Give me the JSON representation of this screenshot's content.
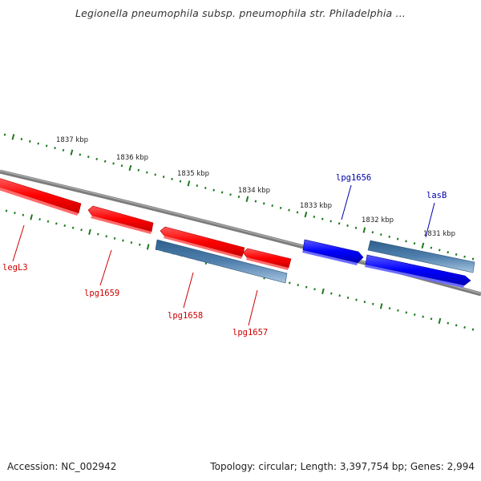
{
  "title": "Legionella pneumophila subsp. pneumophila str. Philadelphia ...",
  "accession": "Accession: NC_002942",
  "summary": "Topology: circular; Length: 3,397,754 bp; Genes: 2,994",
  "colors": {
    "backbone": "#808080",
    "tick": "#1e7a1e",
    "reverse_gene": "#ff0000",
    "forward_gene": "#0000ff",
    "cds": "#4f7fad",
    "reverse_label": "#cc0000",
    "forward_label": "#0000aa"
  },
  "scale_labels": [
    {
      "label": "1837 kbp"
    },
    {
      "label": "1836 kbp"
    },
    {
      "label": "1835 kbp"
    },
    {
      "label": "1834 kbp"
    },
    {
      "label": "1833 kbp"
    },
    {
      "label": "1832 kbp"
    },
    {
      "label": "1831 kbp"
    }
  ],
  "genes": [
    {
      "name": "legL3",
      "strand": "reverse"
    },
    {
      "name": "lpg1659",
      "strand": "reverse"
    },
    {
      "name": "lpg1658",
      "strand": "reverse"
    },
    {
      "name": "lpg1657",
      "strand": "reverse"
    },
    {
      "name": "lpg1656",
      "strand": "forward"
    },
    {
      "name": "lasB",
      "strand": "forward"
    }
  ]
}
